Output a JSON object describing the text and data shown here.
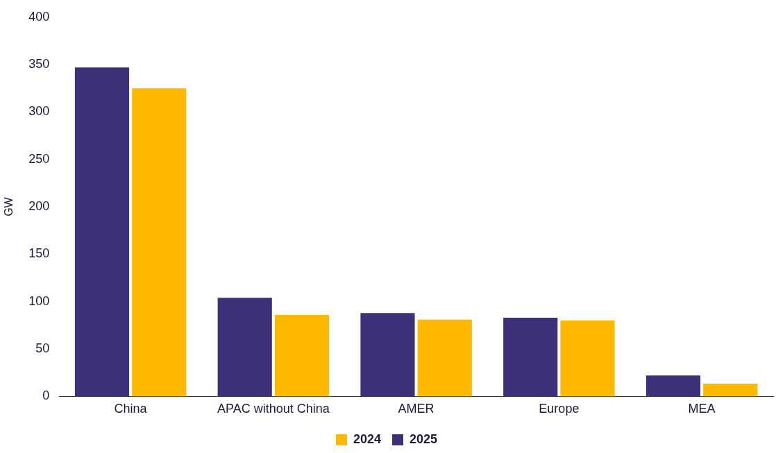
{
  "chart_data": {
    "type": "bar",
    "ylabel": "GW",
    "categories": [
      "China",
      "APAC without China",
      "AMER",
      "Europe",
      "MEA"
    ],
    "series": [
      {
        "name": "2025",
        "color": "#3d3078",
        "values": [
          347,
          104,
          88,
          83,
          22
        ]
      },
      {
        "name": "2024",
        "color": "#ffb800",
        "values": [
          325,
          86,
          81,
          80,
          13.5
        ]
      }
    ],
    "ylim": [
      0,
      400
    ],
    "yticks": [
      0,
      50,
      100,
      150,
      200,
      250,
      300,
      350,
      400
    ],
    "grid": false,
    "legend": "bottom"
  }
}
